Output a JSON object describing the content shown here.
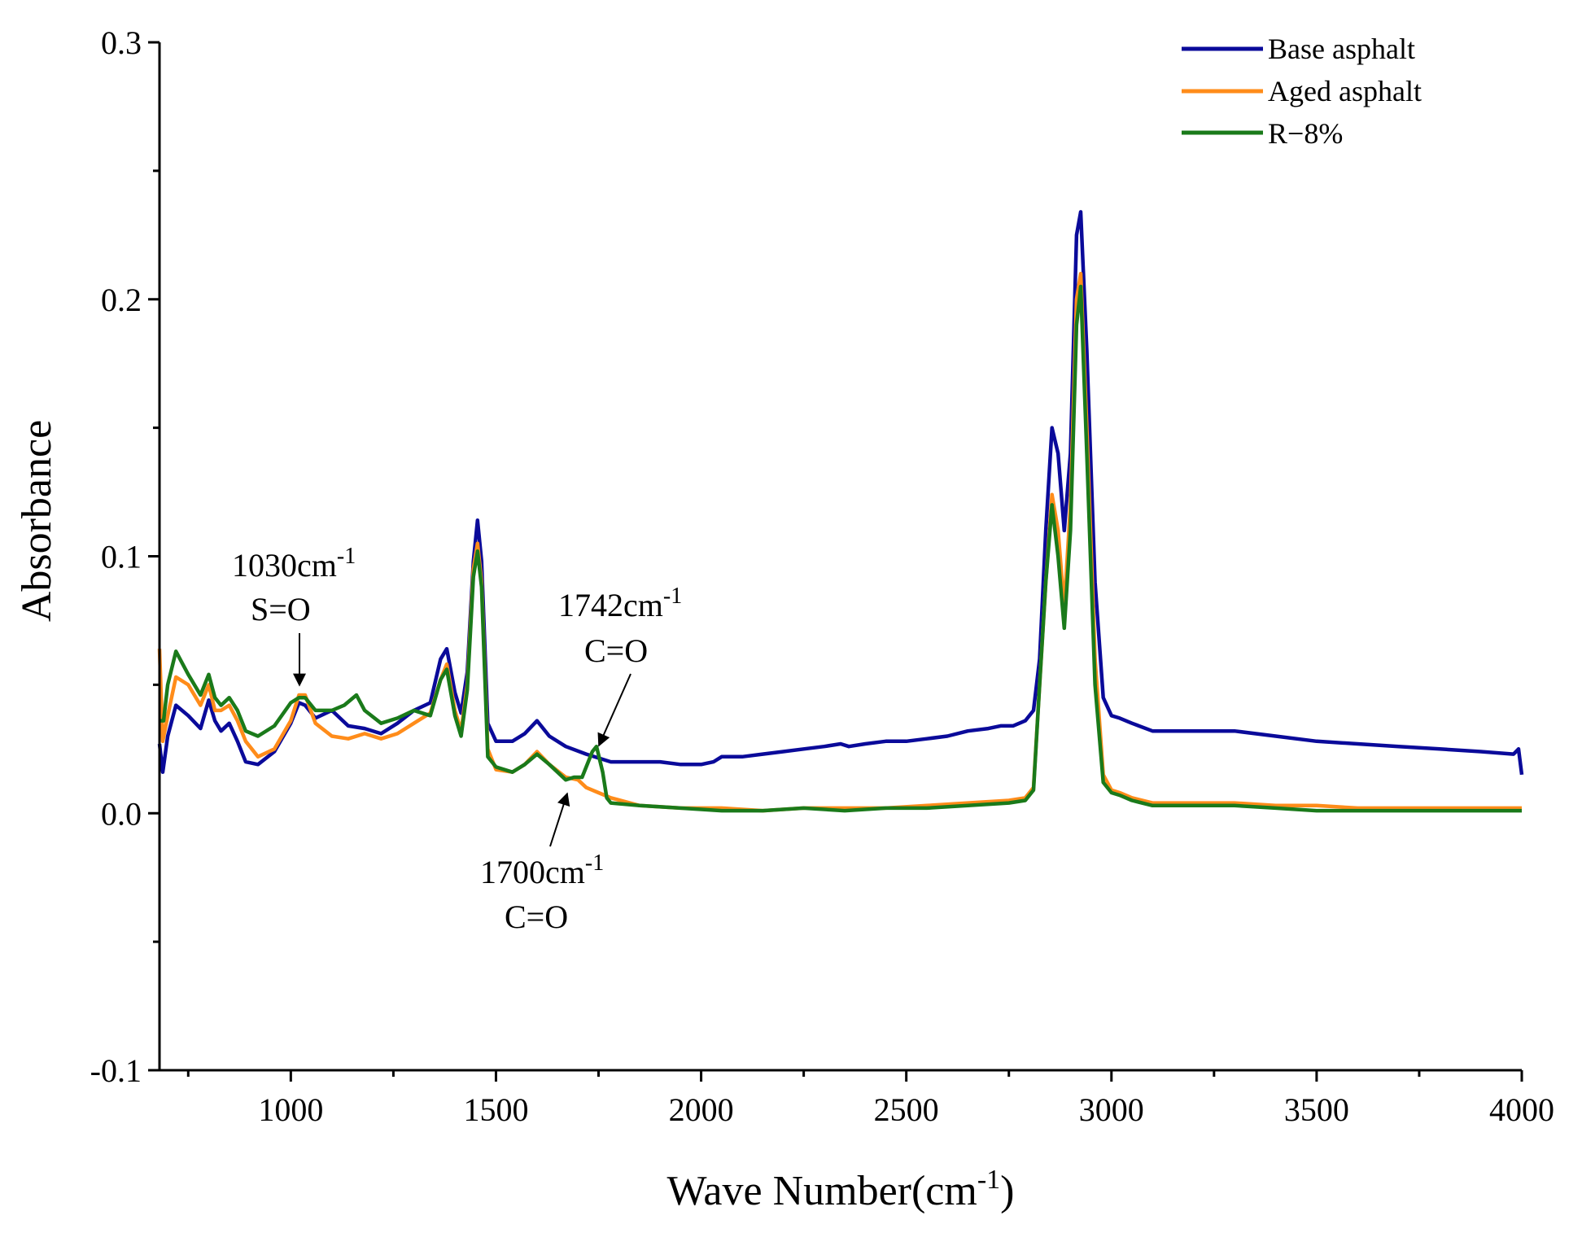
{
  "chart_data": {
    "type": "line",
    "title": "",
    "xlabel": "Wave Number(cm",
    "xlabel_sup": "-1",
    "xlabel_close": ")",
    "ylabel": "Absorbance",
    "xlim": [
      680,
      4000
    ],
    "ylim": [
      -0.1,
      0.3
    ],
    "xticks": [
      1000,
      1500,
      2000,
      2500,
      3000,
      3500,
      4000
    ],
    "xtick_labels": [
      "1000",
      "1500",
      "2000",
      "2500",
      "3000",
      "3500",
      "4000"
    ],
    "yticks": [
      -0.1,
      0.0,
      0.1,
      0.2,
      0.3
    ],
    "ytick_labels": [
      "-0.1",
      "0.0",
      "0.1",
      "0.2",
      "0.3"
    ],
    "legend_position": "top-right",
    "series": [
      {
        "name": "Base asphalt",
        "color": "#0a0a9a",
        "x": [
          680,
          688,
          700,
          720,
          750,
          780,
          800,
          815,
          830,
          850,
          870,
          890,
          920,
          960,
          1000,
          1020,
          1035,
          1060,
          1100,
          1140,
          1180,
          1220,
          1260,
          1300,
          1340,
          1365,
          1380,
          1400,
          1415,
          1430,
          1445,
          1455,
          1465,
          1480,
          1500,
          1540,
          1570,
          1600,
          1630,
          1670,
          1720,
          1780,
          1850,
          1900,
          1950,
          2000,
          2030,
          2050,
          2100,
          2150,
          2200,
          2250,
          2300,
          2340,
          2360,
          2400,
          2450,
          2500,
          2550,
          2600,
          2650,
          2700,
          2730,
          2760,
          2790,
          2810,
          2825,
          2840,
          2855,
          2870,
          2885,
          2900,
          2915,
          2925,
          2940,
          2960,
          2980,
          3000,
          3020,
          3050,
          3100,
          3200,
          3300,
          3400,
          3500,
          3600,
          3700,
          3800,
          3900,
          3980,
          3992,
          4000
        ],
        "y": [
          0.027,
          0.016,
          0.03,
          0.042,
          0.038,
          0.033,
          0.044,
          0.036,
          0.032,
          0.035,
          0.028,
          0.02,
          0.019,
          0.024,
          0.035,
          0.043,
          0.042,
          0.037,
          0.04,
          0.034,
          0.033,
          0.031,
          0.035,
          0.04,
          0.043,
          0.06,
          0.064,
          0.047,
          0.039,
          0.055,
          0.098,
          0.114,
          0.098,
          0.035,
          0.028,
          0.028,
          0.031,
          0.036,
          0.03,
          0.026,
          0.023,
          0.02,
          0.02,
          0.02,
          0.019,
          0.019,
          0.02,
          0.022,
          0.022,
          0.023,
          0.024,
          0.025,
          0.026,
          0.027,
          0.026,
          0.027,
          0.028,
          0.028,
          0.029,
          0.03,
          0.032,
          0.033,
          0.034,
          0.034,
          0.036,
          0.04,
          0.06,
          0.11,
          0.15,
          0.14,
          0.11,
          0.14,
          0.225,
          0.234,
          0.18,
          0.09,
          0.045,
          0.038,
          0.037,
          0.035,
          0.032,
          0.032,
          0.032,
          0.03,
          0.028,
          0.027,
          0.026,
          0.025,
          0.024,
          0.023,
          0.025,
          0.015
        ]
      },
      {
        "name": "Aged asphalt",
        "color": "#ff8c1a",
        "x": [
          680,
          688,
          700,
          720,
          750,
          780,
          800,
          815,
          830,
          850,
          870,
          890,
          920,
          960,
          1000,
          1020,
          1035,
          1060,
          1100,
          1140,
          1180,
          1220,
          1260,
          1300,
          1340,
          1365,
          1380,
          1400,
          1415,
          1430,
          1445,
          1455,
          1465,
          1480,
          1500,
          1540,
          1570,
          1600,
          1630,
          1670,
          1700,
          1720,
          1750,
          1780,
          1850,
          1950,
          2050,
          2150,
          2250,
          2350,
          2450,
          2550,
          2650,
          2750,
          2790,
          2810,
          2825,
          2840,
          2855,
          2870,
          2885,
          2900,
          2915,
          2925,
          2940,
          2960,
          2980,
          3000,
          3020,
          3050,
          3100,
          3200,
          3300,
          3400,
          3500,
          3600,
          3700,
          3800,
          3900,
          4000
        ],
        "y": [
          0.064,
          0.028,
          0.038,
          0.053,
          0.05,
          0.042,
          0.05,
          0.04,
          0.04,
          0.042,
          0.036,
          0.028,
          0.022,
          0.025,
          0.036,
          0.046,
          0.046,
          0.035,
          0.03,
          0.029,
          0.031,
          0.029,
          0.031,
          0.035,
          0.039,
          0.052,
          0.058,
          0.04,
          0.032,
          0.05,
          0.095,
          0.105,
          0.09,
          0.025,
          0.017,
          0.016,
          0.019,
          0.024,
          0.019,
          0.014,
          0.013,
          0.01,
          0.008,
          0.006,
          0.003,
          0.002,
          0.002,
          0.001,
          0.002,
          0.002,
          0.002,
          0.003,
          0.004,
          0.005,
          0.006,
          0.01,
          0.05,
          0.09,
          0.124,
          0.11,
          0.08,
          0.12,
          0.2,
          0.21,
          0.15,
          0.06,
          0.015,
          0.009,
          0.008,
          0.006,
          0.004,
          0.004,
          0.004,
          0.003,
          0.003,
          0.002,
          0.002,
          0.002,
          0.002,
          0.002
        ]
      },
      {
        "name": "R−8%",
        "color": "#1a7a1a",
        "x": [
          680,
          690,
          700,
          720,
          750,
          780,
          800,
          815,
          830,
          850,
          870,
          890,
          920,
          960,
          1000,
          1020,
          1035,
          1060,
          1100,
          1130,
          1160,
          1180,
          1220,
          1260,
          1300,
          1340,
          1365,
          1380,
          1400,
          1415,
          1430,
          1445,
          1455,
          1465,
          1480,
          1500,
          1540,
          1570,
          1600,
          1630,
          1670,
          1690,
          1710,
          1735,
          1745,
          1760,
          1770,
          1780,
          1850,
          1950,
          2050,
          2150,
          2250,
          2350,
          2450,
          2550,
          2650,
          2750,
          2790,
          2810,
          2825,
          2840,
          2855,
          2870,
          2885,
          2900,
          2915,
          2925,
          2940,
          2960,
          2980,
          3000,
          3020,
          3050,
          3100,
          3200,
          3300,
          3400,
          3500,
          3600,
          3700,
          3800,
          3900,
          4000
        ],
        "y": [
          0.036,
          0.036,
          0.05,
          0.063,
          0.054,
          0.046,
          0.054,
          0.045,
          0.042,
          0.045,
          0.04,
          0.032,
          0.03,
          0.034,
          0.043,
          0.045,
          0.045,
          0.04,
          0.04,
          0.042,
          0.046,
          0.04,
          0.035,
          0.037,
          0.04,
          0.038,
          0.052,
          0.056,
          0.038,
          0.03,
          0.048,
          0.092,
          0.102,
          0.088,
          0.022,
          0.018,
          0.016,
          0.019,
          0.023,
          0.019,
          0.013,
          0.014,
          0.014,
          0.024,
          0.026,
          0.016,
          0.006,
          0.004,
          0.003,
          0.002,
          0.001,
          0.001,
          0.002,
          0.001,
          0.002,
          0.002,
          0.003,
          0.004,
          0.005,
          0.009,
          0.05,
          0.09,
          0.12,
          0.1,
          0.072,
          0.11,
          0.19,
          0.205,
          0.14,
          0.05,
          0.012,
          0.008,
          0.007,
          0.005,
          0.003,
          0.003,
          0.003,
          0.002,
          0.001,
          0.001,
          0.001,
          0.001,
          0.001,
          0.001
        ]
      }
    ],
    "annotations": [
      {
        "id": "so",
        "label": "1030cm",
        "sup": "-1",
        "group": "S=O"
      },
      {
        "id": "co1742",
        "label": "1742cm",
        "sup": "-1",
        "group": "C=O"
      },
      {
        "id": "co1700",
        "label": "1700cm",
        "sup": "-1",
        "group": "C=O"
      }
    ]
  }
}
